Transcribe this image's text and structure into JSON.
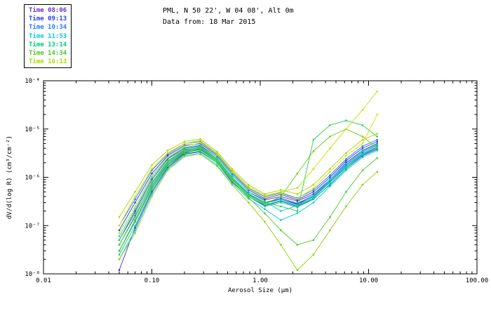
{
  "header": {
    "title": "PML, N 50 22', W 04 08', Alt 0m",
    "subtitle": "Data from: 18 Mar 2015"
  },
  "legend": {
    "entries": [
      {
        "label": "Time 08:06",
        "color": "#6633cc"
      },
      {
        "label": "Time 09:13",
        "color": "#2a3fe8"
      },
      {
        "label": "Time 10:34",
        "color": "#1f7fff"
      },
      {
        "label": "Time 11:53",
        "color": "#00ccee"
      },
      {
        "label": "Time 13:14",
        "color": "#00cc77"
      },
      {
        "label": "Time 14:34",
        "color": "#44cc22"
      },
      {
        "label": "Time 16:13",
        "color": "#aadd00"
      }
    ]
  },
  "chart_data": {
    "type": "line",
    "title": "PML, N 50 22', W 04 08', Alt 0m",
    "subtitle": "Data from: 18 Mar 2015",
    "xlabel": "Aerosol Size (μm)",
    "ylabel": "dV/d(log R) (cm³/cm⁻²)",
    "x_scale": "log",
    "y_scale": "log",
    "xlim": [
      0.01,
      100.0
    ],
    "ylim": [
      1e-08,
      0.0001
    ],
    "grid": false,
    "legend_position": "top-left",
    "xticks": [
      {
        "value": 0.01,
        "label": "0.01"
      },
      {
        "value": 0.1,
        "label": "0.10"
      },
      {
        "value": 1.0,
        "label": "1.00"
      },
      {
        "value": 10.0,
        "label": "10.00"
      },
      {
        "value": 100.0,
        "label": "100.00"
      }
    ],
    "yticks": [
      {
        "value": 1e-08,
        "label": "10⁻⁸"
      },
      {
        "value": 1e-07,
        "label": "10⁻⁷"
      },
      {
        "value": 1e-06,
        "label": "10⁻⁶"
      },
      {
        "value": 1e-05,
        "label": "10⁻⁵"
      },
      {
        "value": 0.0001,
        "label": "10⁻⁴"
      }
    ],
    "x": [
      0.05,
      0.07,
      0.1,
      0.14,
      0.2,
      0.28,
      0.4,
      0.55,
      0.78,
      1.1,
      1.55,
      2.2,
      3.1,
      4.4,
      6.2,
      8.8,
      12.0
    ],
    "series": [
      {
        "name": "spectrum-01",
        "time_group": "Time 08:06",
        "color": "#151552",
        "values": [
          3e-08,
          1.2e-07,
          6e-07,
          1.8e-06,
          3.2e-06,
          3.8e-06,
          2.2e-06,
          9e-07,
          4.5e-07,
          3e-07,
          3.5e-07,
          2.8e-07,
          4e-07,
          8e-07,
          1.6e-06,
          3e-06,
          4e-06
        ]
      },
      {
        "name": "spectrum-02",
        "time_group": "Time 08:06",
        "color": "#5b2ca8",
        "values": [
          5e-08,
          2e-07,
          9e-07,
          2.4e-06,
          4e-06,
          4.5e-06,
          2.6e-06,
          1.1e-06,
          5e-07,
          3.4e-07,
          4e-07,
          3.2e-07,
          4.5e-07,
          9e-07,
          2e-06,
          3.6e-06,
          5e-06
        ]
      },
      {
        "name": "spectrum-03",
        "time_group": "Time 08:06",
        "color": "#3b2fd4",
        "values": [
          1.2e-08,
          9e-08,
          5e-07,
          1.6e-06,
          3e-06,
          3.4e-06,
          2e-06,
          8e-07,
          4e-07,
          2.6e-07,
          3.2e-07,
          2.5e-07,
          3.6e-07,
          7e-07,
          1.5e-06,
          2.8e-06,
          3.8e-06
        ]
      },
      {
        "name": "spectrum-04",
        "time_group": "Time 09:13",
        "color": "#1f3fee",
        "values": [
          8e-08,
          3e-07,
          1.2e-06,
          2.8e-06,
          4.6e-06,
          5e-06,
          2.8e-06,
          1.2e-06,
          5.5e-07,
          3.6e-07,
          4.4e-07,
          3.4e-07,
          5e-07,
          1e-06,
          2.2e-06,
          4e-06,
          5.5e-06
        ]
      },
      {
        "name": "spectrum-05",
        "time_group": "Time 09:13",
        "color": "#2b5cf2",
        "values": [
          4e-08,
          1.6e-07,
          7e-07,
          2e-06,
          3.6e-06,
          4.2e-06,
          2.4e-06,
          1e-06,
          4.6e-07,
          3e-07,
          3.7e-07,
          2.9e-07,
          4.2e-07,
          8.5e-07,
          1.8e-06,
          3.3e-06,
          4.6e-06
        ]
      },
      {
        "name": "spectrum-06",
        "time_group": "Time 10:34",
        "color": "#1e7cf0",
        "values": [
          1e-07,
          3.5e-07,
          1.4e-06,
          3e-06,
          5e-06,
          5.5e-06,
          3e-06,
          1.3e-06,
          6e-07,
          4e-07,
          4.8e-07,
          3.7e-07,
          5.5e-07,
          1.1e-06,
          2.4e-06,
          4.4e-06,
          6e-06
        ]
      },
      {
        "name": "spectrum-07",
        "time_group": "Time 10:34",
        "color": "#13a0e8",
        "values": [
          3e-08,
          1.3e-07,
          6.5e-07,
          1.9e-06,
          3.4e-06,
          3.9e-06,
          2.2e-06,
          9.5e-07,
          4.4e-07,
          2.9e-07,
          3.5e-07,
          2.7e-07,
          4e-07,
          8e-07,
          1.7e-06,
          3.1e-06,
          4.3e-06
        ]
      },
      {
        "name": "spectrum-08",
        "time_group": "Time 11:53",
        "color": "#06c3e0",
        "values": [
          2e-08,
          8e-08,
          4.5e-07,
          1.5e-06,
          2.8e-06,
          3.2e-06,
          1.8e-06,
          7.5e-07,
          3.6e-07,
          2.2e-07,
          1.3e-07,
          1.8e-07,
          3e-07,
          6.5e-07,
          1.4e-06,
          2.6e-06,
          3.6e-06
        ]
      },
      {
        "name": "spectrum-09",
        "time_group": "Time 11:53",
        "color": "#00d8cc",
        "values": [
          6e-08,
          2.2e-07,
          1e-06,
          2.5e-06,
          4.2e-06,
          4.7e-06,
          2.6e-06,
          1.1e-06,
          5e-07,
          3.2e-07,
          2e-07,
          2.6e-07,
          4.2e-07,
          9e-07,
          1.9e-06,
          3.5e-06,
          4.8e-06
        ]
      },
      {
        "name": "spectrum-10",
        "time_group": "Time 13:14",
        "color": "#00d9a6",
        "values": [
          4e-08,
          1.5e-07,
          7.5e-07,
          2.1e-06,
          3.7e-06,
          4.1e-06,
          2.3e-06,
          9.5e-07,
          4.3e-07,
          2.7e-07,
          3.3e-07,
          2.6e-07,
          3.8e-07,
          7.8e-07,
          1.6e-06,
          3e-06,
          4.2e-06
        ]
      },
      {
        "name": "spectrum-11",
        "time_group": "Time 13:14",
        "color": "#09cf7a",
        "values": [
          2.5e-08,
          1e-07,
          5.5e-07,
          1.7e-06,
          3.1e-06,
          3.5e-06,
          2e-06,
          8.5e-07,
          4e-07,
          2.5e-07,
          3e-07,
          2.4e-07,
          3.5e-07,
          7.2e-07,
          1.5e-06,
          2.9e-06,
          4e-06
        ]
      },
      {
        "name": "spectrum-12",
        "time_group": "Time 14:34",
        "color": "#25cc52",
        "values": [
          5e-08,
          1.8e-07,
          8e-07,
          2.2e-06,
          3.8e-06,
          4.3e-06,
          2.4e-06,
          1e-06,
          4.5e-07,
          3e-07,
          2.5e-07,
          2e-07,
          6e-06,
          1.2e-05,
          1.5e-05,
          1.2e-05,
          7e-06
        ]
      },
      {
        "name": "spectrum-13",
        "time_group": "Time 14:34",
        "color": "#45cc2e",
        "values": [
          3e-08,
          1.2e-07,
          6e-07,
          1.8e-06,
          3.3e-06,
          3.7e-06,
          2.1e-06,
          8.5e-07,
          3.8e-07,
          1.8e-07,
          8e-08,
          4e-08,
          5e-08,
          1.5e-07,
          5e-07,
          1.4e-06,
          2.5e-06
        ]
      },
      {
        "name": "spectrum-14",
        "time_group": "Time 14:34",
        "color": "#68cc14",
        "values": [
          4e-08,
          1.5e-07,
          7e-07,
          2e-06,
          3.5e-06,
          4e-06,
          2.2e-06,
          9e-07,
          4.2e-07,
          2.8e-07,
          4e-07,
          1.2e-06,
          3.5e-06,
          7e-06,
          1e-05,
          7e-06,
          4e-06
        ]
      },
      {
        "name": "spectrum-15",
        "time_group": "Time 16:13",
        "color": "#8ccf06",
        "values": [
          2e-08,
          7e-08,
          4e-07,
          1.4e-06,
          2.7e-06,
          3e-06,
          1.7e-06,
          7e-07,
          3e-07,
          1.2e-07,
          4e-08,
          1.2e-08,
          2.5e-08,
          8e-08,
          2.5e-07,
          7e-07,
          1.3e-06
        ]
      },
      {
        "name": "spectrum-16",
        "time_group": "Time 16:13",
        "color": "#aad500",
        "values": [
          1.5e-07,
          5e-07,
          1.8e-06,
          3.6e-06,
          5.5e-06,
          6.2e-06,
          3.4e-06,
          1.5e-06,
          7e-07,
          4.5e-07,
          5.5e-07,
          4.5e-07,
          7e-07,
          1.5e-06,
          3.2e-06,
          6e-06,
          8e-06
        ]
      },
      {
        "name": "spectrum-17",
        "time_group": "Time 16:13",
        "color": "#c8dd00",
        "values": [
          1e-07,
          4e-07,
          1.5e-06,
          3.2e-06,
          5e-06,
          5.8e-06,
          3.2e-06,
          1.4e-06,
          6.5e-07,
          4.2e-07,
          5e-07,
          6e-07,
          1.5e-06,
          4e-06,
          1e-05,
          2.5e-05,
          6e-05
        ]
      },
      {
        "name": "spectrum-18",
        "time_group": "Time 16:13",
        "color": "#d4e000",
        "values": [
          7e-08,
          2.5e-07,
          1.1e-06,
          2.6e-06,
          4.4e-06,
          5.2e-06,
          2.9e-06,
          1.25e-06,
          5.8e-07,
          3.8e-07,
          4.6e-07,
          3.6e-07,
          6e-07,
          1.3e-06,
          2.8e-06,
          5e-06,
          2e-05
        ]
      }
    ]
  }
}
